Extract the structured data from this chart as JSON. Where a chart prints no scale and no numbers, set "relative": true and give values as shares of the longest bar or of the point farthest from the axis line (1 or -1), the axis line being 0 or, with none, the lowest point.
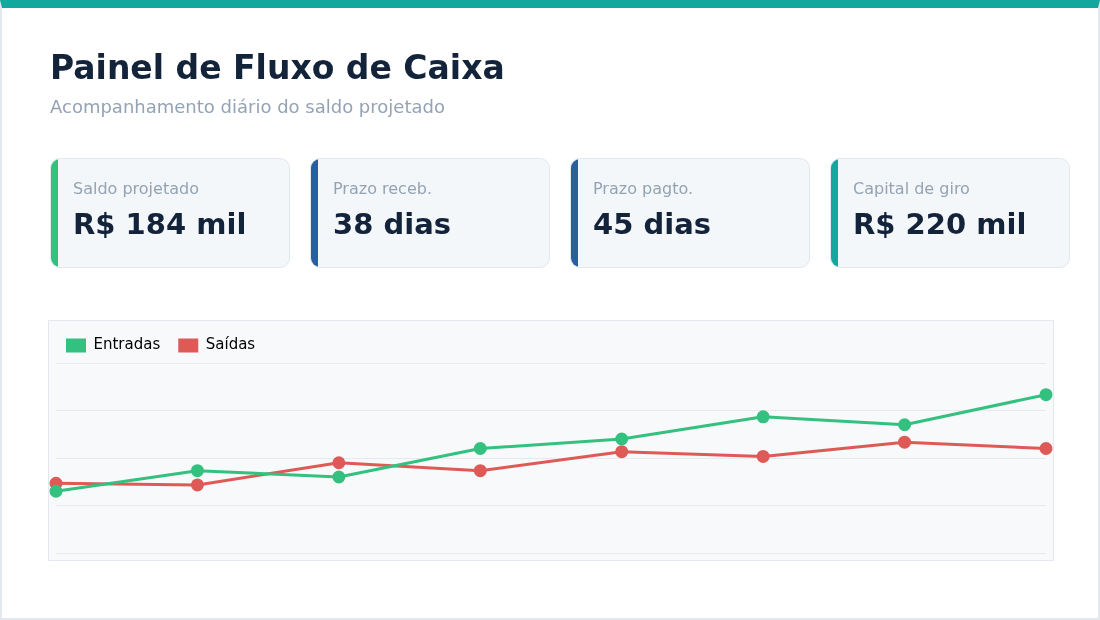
{
  "chart_data": [
    {
      "type": "other",
      "title": "Painel de Fluxo de Caixa",
      "subtitle": "Acompanhamento diário do saldo projetado",
      "annotations": [
        "Saldo projetado",
        "R$ 184 mil",
        "Prazo receb.",
        "38 dias",
        "Prazo pagto.",
        "45 dias",
        "Capital de giro",
        "R$ 220 mil"
      ]
    },
    {
      "type": "line",
      "relative": true,
      "categories": [
        null,
        null,
        null,
        null,
        null,
        null,
        null,
        null
      ],
      "legend": "top left",
      "grid": "y",
      "marker": "circle",
      "line_style": "solid",
      "series": [
        {
          "name": "Entradas",
          "color": "#34c17f",
          "values": [
            0.39,
            0.52,
            0.48,
            0.66,
            0.72,
            0.86,
            0.81,
            1
          ]
        },
        {
          "name": "Saídas",
          "color": "#de5a57",
          "values": [
            0.44,
            0.43,
            0.57,
            0.52,
            0.64,
            0.61,
            0.7,
            0.66
          ]
        }
      ]
    }
  ]
}
